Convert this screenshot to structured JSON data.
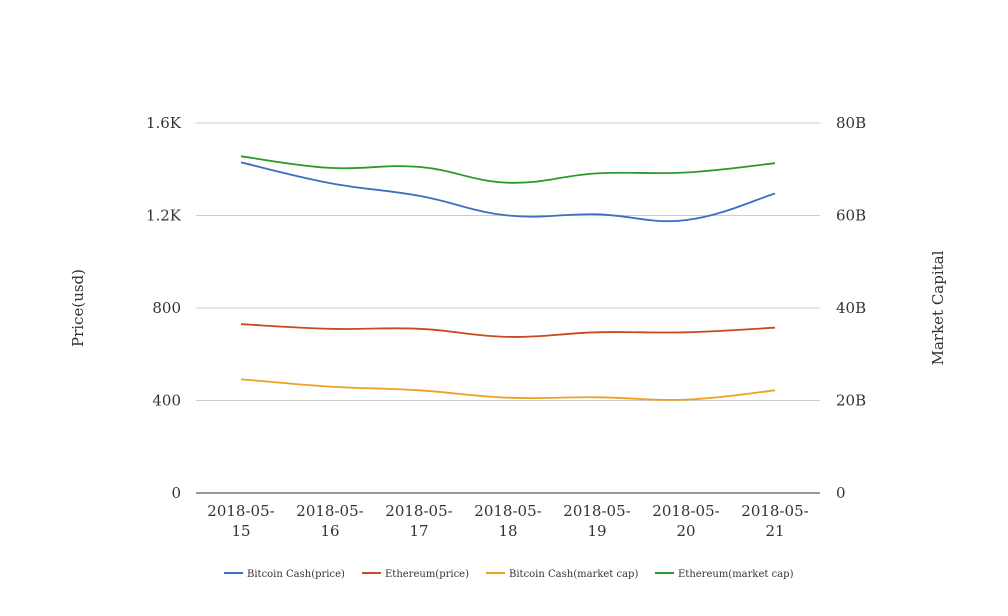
{
  "chart_data": {
    "type": "line",
    "categories": [
      "2018-05-15",
      "2018-05-16",
      "2018-05-17",
      "2018-05-18",
      "2018-05-19",
      "2018-05-20",
      "2018-05-21"
    ],
    "category_lines": [
      [
        "2018-05-",
        "15"
      ],
      [
        "2018-05-",
        "16"
      ],
      [
        "2018-05-",
        "17"
      ],
      [
        "2018-05-",
        "18"
      ],
      [
        "2018-05-",
        "19"
      ],
      [
        "2018-05-",
        "20"
      ],
      [
        "2018-05-",
        "21"
      ]
    ],
    "y_left": {
      "label": "Price(usd)",
      "ticks": [
        "0",
        "400",
        "800",
        "1.2K",
        "1.6K"
      ],
      "range": [
        0,
        1600
      ]
    },
    "y_right": {
      "label": "Market Capital",
      "ticks": [
        "0",
        "20B",
        "40B",
        "60B",
        "80B"
      ],
      "range": [
        0,
        80000000000
      ]
    },
    "grid": true,
    "legend_position": "bottom",
    "series": [
      {
        "name": "Bitcoin Cash(price)",
        "axis": "left",
        "color": "#3d6ebf",
        "values": [
          1430,
          1340,
          1285,
          1200,
          1205,
          1180,
          1295
        ]
      },
      {
        "name": "Ethereum(price)",
        "axis": "left",
        "color": "#c94a1e",
        "values": [
          730,
          710,
          710,
          675,
          695,
          695,
          715
        ]
      },
      {
        "name": "Bitcoin Cash(market cap)",
        "axis": "right",
        "color": "#f0a020",
        "values": [
          24600000000,
          23000000000,
          22200000000,
          20600000000,
          20700000000,
          20200000000,
          22200000000
        ]
      },
      {
        "name": "Ethereum(market cap)",
        "axis": "right",
        "color": "#2a9a2a",
        "values": [
          72800000000,
          70300000000,
          70500000000,
          67100000000,
          69100000000,
          69300000000,
          71300000000
        ]
      }
    ]
  }
}
